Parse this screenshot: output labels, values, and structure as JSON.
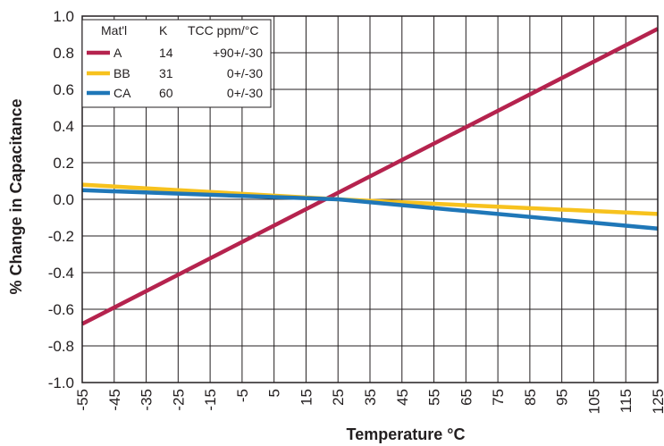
{
  "chart_data": {
    "type": "line",
    "title": "",
    "xlabel": "Temperature °C",
    "ylabel": "% Change in Capacitance",
    "xlim": [
      -55,
      125
    ],
    "ylim": [
      -1.0,
      1.0
    ],
    "grid": true,
    "x_ticks": [
      -55,
      -45,
      -35,
      -25,
      -15,
      -5,
      5,
      15,
      25,
      35,
      45,
      55,
      65,
      75,
      85,
      95,
      105,
      115,
      125
    ],
    "y_ticks": [
      "1.0",
      "0.8",
      "0.6",
      "0.4",
      "0.2",
      "0.0",
      "-0.2",
      "-0.4",
      "-0.6",
      "-0.8",
      "-1.0"
    ],
    "y_tick_values": [
      1.0,
      0.8,
      0.6,
      0.4,
      0.2,
      0.0,
      -0.2,
      -0.4,
      -0.6,
      -0.8,
      -1.0
    ],
    "legend": {
      "position": "top-left",
      "headers": [
        "Mat'l",
        "K",
        "TCC ppm/°C"
      ],
      "rows": [
        {
          "material": "A",
          "k": "14",
          "tcc": "+90+/-30"
        },
        {
          "material": "BB",
          "k": "31",
          "tcc": "0+/-30"
        },
        {
          "material": "CA",
          "k": "60",
          "tcc": "0+/-30"
        }
      ]
    },
    "series": [
      {
        "name": "A",
        "color": "#b5234e",
        "x": [
          -55,
          125
        ],
        "y": [
          -0.68,
          0.93
        ]
      },
      {
        "name": "BB",
        "color": "#f7c21e",
        "x": [
          -55,
          25,
          125
        ],
        "y": [
          0.08,
          0.0,
          -0.08
        ]
      },
      {
        "name": "CA",
        "color": "#1f77b8",
        "x": [
          -55,
          25,
          125
        ],
        "y": [
          0.05,
          0.0,
          -0.16
        ]
      }
    ]
  }
}
